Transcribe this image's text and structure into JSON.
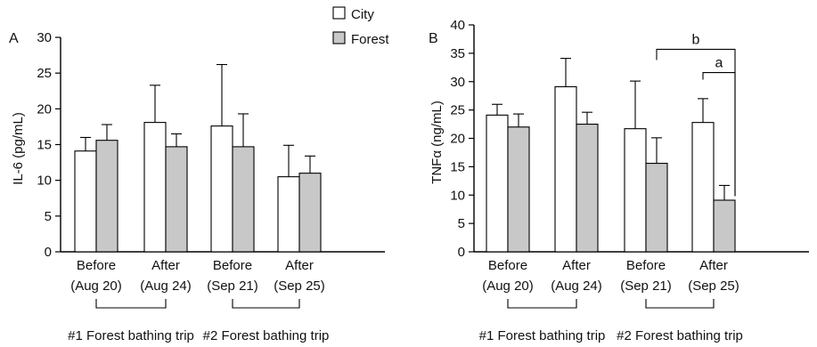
{
  "legend": {
    "items": [
      {
        "label": "City",
        "color": "#ffffff"
      },
      {
        "label": "Forest",
        "color": "#c8c8c8"
      }
    ]
  },
  "chart_data": [
    {
      "type": "bar",
      "panel": "A",
      "ylabel": "IL-6 (pg/mL)",
      "ylim": [
        0,
        30
      ],
      "yticks": [
        0,
        5,
        10,
        15,
        20,
        25,
        30
      ],
      "categories": [
        {
          "line1": "Before",
          "line2": "(Aug 20)"
        },
        {
          "line1": "After",
          "line2": "(Aug 24)"
        },
        {
          "line1": "Before",
          "line2": "(Sep 21)"
        },
        {
          "line1": "After",
          "line2": "(Sep 25)"
        }
      ],
      "series": [
        {
          "name": "City",
          "color": "#ffffff",
          "values": [
            14.1,
            18.1,
            17.6,
            10.5
          ],
          "errors": [
            1.9,
            5.2,
            8.6,
            4.4
          ]
        },
        {
          "name": "Forest",
          "color": "#c8c8c8",
          "values": [
            15.6,
            14.7,
            14.7,
            11.0
          ],
          "errors": [
            2.2,
            1.8,
            4.6,
            2.4
          ]
        }
      ],
      "groups": [
        {
          "label": "#1 Forest bathing trip",
          "span": [
            0,
            1
          ]
        },
        {
          "label": "#2 Forest bathing trip",
          "span": [
            2,
            3
          ]
        }
      ],
      "significance": []
    },
    {
      "type": "bar",
      "panel": "B",
      "ylabel": "TNFα (ng/mL)",
      "ylim": [
        0,
        40
      ],
      "yticks": [
        0,
        5,
        10,
        15,
        20,
        25,
        30,
        35,
        40
      ],
      "categories": [
        {
          "line1": "Before",
          "line2": "(Aug 20)"
        },
        {
          "line1": "After",
          "line2": "(Aug 24)"
        },
        {
          "line1": "Before",
          "line2": "(Sep 21)"
        },
        {
          "line1": "After",
          "line2": "(Sep 25)"
        }
      ],
      "series": [
        {
          "name": "City",
          "color": "#ffffff",
          "values": [
            24.1,
            29.1,
            21.7,
            22.8
          ],
          "errors": [
            1.9,
            5.0,
            8.4,
            4.2
          ]
        },
        {
          "name": "Forest",
          "color": "#c8c8c8",
          "values": [
            22.0,
            22.5,
            15.6,
            9.1
          ],
          "errors": [
            2.3,
            2.1,
            4.5,
            2.6
          ]
        }
      ],
      "groups": [
        {
          "label": "#1 Forest bathing trip",
          "span": [
            0,
            1
          ]
        },
        {
          "label": "#2 Forest bathing trip",
          "span": [
            2,
            3
          ]
        }
      ],
      "significance": [
        {
          "label": "b",
          "from": {
            "category": 2,
            "series": 1
          },
          "to": {
            "category": 3,
            "series": 1
          },
          "y": 35.7
        },
        {
          "label": "a",
          "from": {
            "category": 3,
            "series": 0
          },
          "to": {
            "category": 3,
            "series": 1
          },
          "y": 31.6
        }
      ]
    }
  ]
}
